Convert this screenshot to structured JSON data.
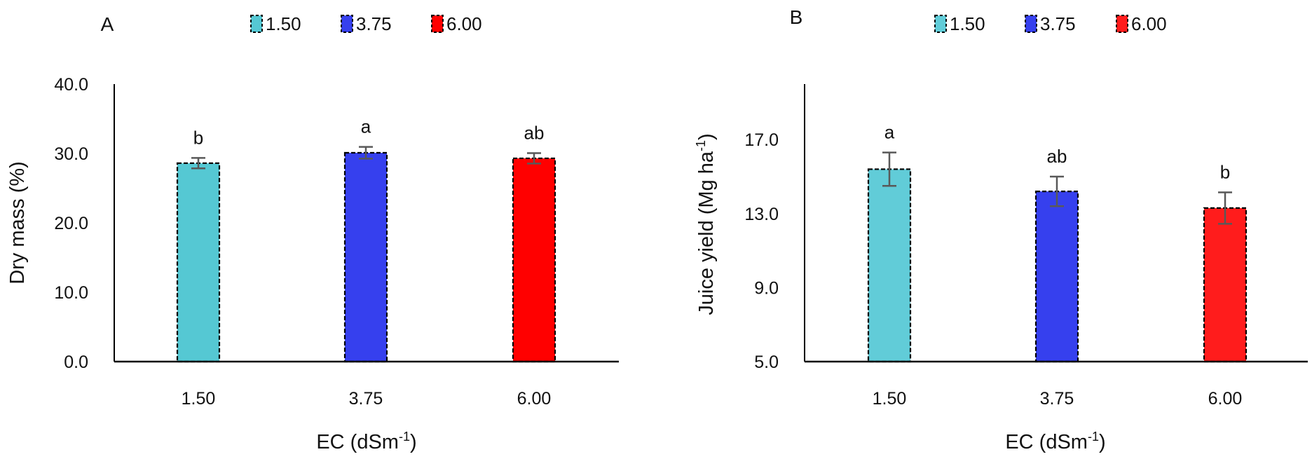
{
  "chart_data": [
    {
      "type": "bar",
      "panel_label": "A",
      "categories": [
        "1.50",
        "3.75",
        "6.00"
      ],
      "values": [
        28.6,
        30.1,
        29.3
      ],
      "error": [
        0.75,
        0.85,
        0.75
      ],
      "significance_letters": [
        "b",
        "a",
        "ab"
      ],
      "colors": [
        "#55C8D3",
        "#3640EE",
        "#FF0000"
      ],
      "legend": [
        "1.50",
        "3.75",
        "6.00"
      ],
      "legend_position": "top",
      "xlabel": "EC (dSm",
      "xlabel_sup": "-1",
      "xlabel_end": ")",
      "ylabel": "Dry mass (%)",
      "ylim": [
        0,
        40
      ],
      "yticks": [
        "0.0",
        "10.0",
        "20.0",
        "30.0",
        "40.0"
      ],
      "ytick_values": [
        0,
        10,
        20,
        30,
        40
      ],
      "grid": false,
      "bar_border": "dashed"
    },
    {
      "type": "bar",
      "panel_label": "B",
      "categories": [
        "1.50",
        "3.75",
        "6.00"
      ],
      "values": [
        15.4,
        14.2,
        13.3
      ],
      "error": [
        0.9,
        0.8,
        0.85
      ],
      "significance_letters": [
        "a",
        "ab",
        "b"
      ],
      "colors": [
        "#61CCD8",
        "#3640EE",
        "#FF1C1C"
      ],
      "legend": [
        "1.50",
        "3.75",
        "6.00"
      ],
      "legend_position": "top",
      "xlabel": "EC (dSm",
      "xlabel_sup": "-1",
      "xlabel_end": ")",
      "ylabel": "Juice yield (Mg ha",
      "ylabel_sup": "-1",
      "ylabel_end": ")",
      "ylim": [
        5,
        20
      ],
      "yticks": [
        "5.0",
        "9.0",
        "13.0",
        "17.0"
      ],
      "ytick_values": [
        5,
        9,
        13,
        17
      ],
      "grid": false,
      "bar_border": "dashed"
    }
  ],
  "style": {
    "error_bar_color": "#595959",
    "axis_color": "#000000"
  }
}
